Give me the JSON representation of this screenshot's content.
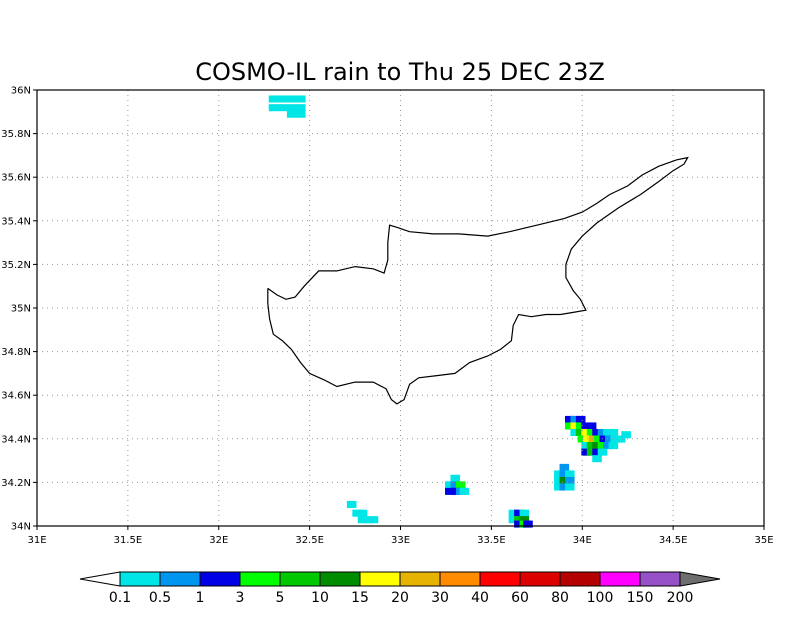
{
  "title": "COSMO-IL rain to Thu 25 DEC 23Z",
  "map": {
    "lon_range": [
      31,
      35
    ],
    "lat_range": [
      34,
      36
    ],
    "x_ticks": [
      {
        "value": 31,
        "label": "31E"
      },
      {
        "value": 31.5,
        "label": "31.5E"
      },
      {
        "value": 32,
        "label": "32E"
      },
      {
        "value": 32.5,
        "label": "32.5E"
      },
      {
        "value": 33,
        "label": "33E"
      },
      {
        "value": 33.5,
        "label": "33.5E"
      },
      {
        "value": 34,
        "label": "34E"
      },
      {
        "value": 34.5,
        "label": "34.5E"
      },
      {
        "value": 35,
        "label": "35E"
      }
    ],
    "y_ticks": [
      {
        "value": 34,
        "label": "34N"
      },
      {
        "value": 34.2,
        "label": "34.2N"
      },
      {
        "value": 34.4,
        "label": "34.4N"
      },
      {
        "value": 34.6,
        "label": "34.6N"
      },
      {
        "value": 34.8,
        "label": "34.8N"
      },
      {
        "value": 35,
        "label": "35N"
      },
      {
        "value": 35.2,
        "label": "35.2N"
      },
      {
        "value": 35.4,
        "label": "35.4N"
      },
      {
        "value": 35.6,
        "label": "35.6N"
      },
      {
        "value": 35.8,
        "label": "35.8N"
      },
      {
        "value": 36,
        "label": "36N"
      }
    ],
    "gridlines": true,
    "coastline": [
      [
        32.27,
        35.09
      ],
      [
        32.32,
        35.06
      ],
      [
        32.37,
        35.04
      ],
      [
        32.42,
        35.05
      ],
      [
        32.47,
        35.1
      ],
      [
        32.55,
        35.17
      ],
      [
        32.65,
        35.17
      ],
      [
        32.75,
        35.19
      ],
      [
        32.85,
        35.18
      ],
      [
        32.91,
        35.16
      ],
      [
        32.93,
        35.22
      ],
      [
        32.93,
        35.3
      ],
      [
        32.94,
        35.38
      ],
      [
        32.98,
        35.37
      ],
      [
        33.05,
        35.35
      ],
      [
        33.18,
        35.34
      ],
      [
        33.32,
        35.34
      ],
      [
        33.48,
        35.33
      ],
      [
        33.6,
        35.35
      ],
      [
        33.75,
        35.38
      ],
      [
        33.9,
        35.41
      ],
      [
        34.0,
        35.44
      ],
      [
        34.08,
        35.48
      ],
      [
        34.15,
        35.52
      ],
      [
        34.25,
        35.56
      ],
      [
        34.33,
        35.61
      ],
      [
        34.42,
        35.65
      ],
      [
        34.52,
        35.68
      ],
      [
        34.58,
        35.69
      ],
      [
        34.56,
        35.66
      ],
      [
        34.5,
        35.63
      ],
      [
        34.42,
        35.58
      ],
      [
        34.32,
        35.52
      ],
      [
        34.2,
        35.46
      ],
      [
        34.08,
        35.39
      ],
      [
        34.0,
        35.33
      ],
      [
        33.94,
        35.27
      ],
      [
        33.91,
        35.2
      ],
      [
        33.91,
        35.14
      ],
      [
        33.95,
        35.08
      ],
      [
        33.99,
        35.04
      ],
      [
        34.02,
        34.99
      ],
      [
        33.95,
        34.98
      ],
      [
        33.88,
        34.97
      ],
      [
        33.8,
        34.97
      ],
      [
        33.72,
        34.96
      ],
      [
        33.65,
        34.97
      ],
      [
        33.62,
        34.92
      ],
      [
        33.61,
        34.85
      ],
      [
        33.55,
        34.81
      ],
      [
        33.48,
        34.78
      ],
      [
        33.38,
        34.75
      ],
      [
        33.3,
        34.7
      ],
      [
        33.2,
        34.69
      ],
      [
        33.1,
        34.68
      ],
      [
        33.05,
        34.65
      ],
      [
        33.02,
        34.58
      ],
      [
        32.98,
        34.56
      ],
      [
        32.95,
        34.58
      ],
      [
        32.92,
        34.63
      ],
      [
        32.85,
        34.66
      ],
      [
        32.75,
        34.66
      ],
      [
        32.65,
        34.64
      ],
      [
        32.58,
        34.67
      ],
      [
        32.5,
        34.7
      ],
      [
        32.45,
        34.75
      ],
      [
        32.4,
        34.81
      ],
      [
        32.35,
        34.85
      ],
      [
        32.3,
        34.88
      ],
      [
        32.28,
        34.95
      ],
      [
        32.27,
        35.02
      ],
      [
        32.27,
        35.09
      ]
    ],
    "rain_cells_note": "cells listed as [lon, lat, class]",
    "rain_cells": [
      [
        32.3,
        35.96,
        0
      ],
      [
        32.35,
        35.96,
        0
      ],
      [
        32.4,
        35.96,
        0
      ],
      [
        32.45,
        35.96,
        0
      ],
      [
        32.3,
        35.92,
        0
      ],
      [
        32.35,
        35.92,
        0
      ],
      [
        32.4,
        35.92,
        0
      ],
      [
        32.45,
        35.92,
        0
      ],
      [
        32.4,
        35.89,
        0
      ],
      [
        32.45,
        35.89,
        0
      ],
      [
        32.73,
        34.1,
        0
      ],
      [
        32.76,
        34.06,
        0
      ],
      [
        32.79,
        34.06,
        0
      ],
      [
        32.79,
        34.03,
        0
      ],
      [
        32.82,
        34.03,
        0
      ],
      [
        32.85,
        34.03,
        0
      ],
      [
        33.3,
        34.22,
        0
      ],
      [
        33.27,
        34.19,
        0
      ],
      [
        33.3,
        34.19,
        1
      ],
      [
        33.33,
        34.19,
        3
      ],
      [
        33.27,
        34.16,
        2
      ],
      [
        33.3,
        34.16,
        2
      ],
      [
        33.33,
        34.16,
        1
      ],
      [
        33.35,
        34.16,
        0
      ],
      [
        33.62,
        34.06,
        0
      ],
      [
        33.65,
        34.06,
        2
      ],
      [
        33.68,
        34.06,
        0
      ],
      [
        33.62,
        34.03,
        0
      ],
      [
        33.65,
        34.03,
        4
      ],
      [
        33.68,
        34.03,
        5
      ],
      [
        33.65,
        34.01,
        2
      ],
      [
        33.68,
        34.01,
        3
      ],
      [
        33.7,
        34.01,
        2
      ],
      [
        33.9,
        34.27,
        1
      ],
      [
        33.87,
        34.24,
        0
      ],
      [
        33.9,
        34.24,
        1
      ],
      [
        33.93,
        34.24,
        0
      ],
      [
        33.87,
        34.21,
        0
      ],
      [
        33.9,
        34.21,
        5
      ],
      [
        33.93,
        34.21,
        1
      ],
      [
        33.87,
        34.18,
        0
      ],
      [
        33.9,
        34.18,
        1
      ],
      [
        33.93,
        34.18,
        0
      ],
      [
        33.93,
        34.49,
        2
      ],
      [
        33.96,
        34.49,
        1
      ],
      [
        33.99,
        34.49,
        2
      ],
      [
        33.93,
        34.46,
        3
      ],
      [
        33.96,
        34.46,
        6
      ],
      [
        33.99,
        34.46,
        3
      ],
      [
        34.02,
        34.46,
        2
      ],
      [
        34.05,
        34.46,
        2
      ],
      [
        33.96,
        34.43,
        0
      ],
      [
        33.99,
        34.43,
        4
      ],
      [
        34.02,
        34.43,
        6
      ],
      [
        34.05,
        34.43,
        3
      ],
      [
        34.08,
        34.43,
        2
      ],
      [
        34.11,
        34.43,
        1
      ],
      [
        34.14,
        34.43,
        0
      ],
      [
        34.17,
        34.43,
        0
      ],
      [
        34.0,
        34.4,
        3
      ],
      [
        34.03,
        34.4,
        6
      ],
      [
        34.06,
        34.4,
        7
      ],
      [
        34.09,
        34.4,
        3
      ],
      [
        34.12,
        34.4,
        2
      ],
      [
        34.15,
        34.4,
        1
      ],
      [
        34.18,
        34.4,
        0
      ],
      [
        34.21,
        34.4,
        0
      ],
      [
        34.24,
        34.42,
        0
      ],
      [
        34.02,
        34.37,
        0
      ],
      [
        34.05,
        34.37,
        4
      ],
      [
        34.08,
        34.37,
        5
      ],
      [
        34.11,
        34.37,
        3
      ],
      [
        34.14,
        34.37,
        1
      ],
      [
        34.17,
        34.37,
        0
      ],
      [
        34.02,
        34.34,
        2
      ],
      [
        34.05,
        34.34,
        4
      ],
      [
        34.08,
        34.34,
        2
      ],
      [
        34.11,
        34.34,
        0
      ],
      [
        34.08,
        34.31,
        0
      ]
    ]
  },
  "colorbar": {
    "colors": [
      "#00e6e6",
      "#0096f0",
      "#0000e6",
      "#00ff00",
      "#00c800",
      "#008c00",
      "#ffff00",
      "#e6b400",
      "#ff8c00",
      "#ff0000",
      "#dc0000",
      "#b40000",
      "#ff00ff",
      "#9650c8"
    ],
    "below_color": "#ffffff",
    "above_color": "#6e6e6e",
    "labels": [
      "0.1",
      "0.5",
      "1",
      "3",
      "5",
      "10",
      "15",
      "20",
      "30",
      "40",
      "60",
      "80",
      "100",
      "150",
      "200"
    ]
  }
}
